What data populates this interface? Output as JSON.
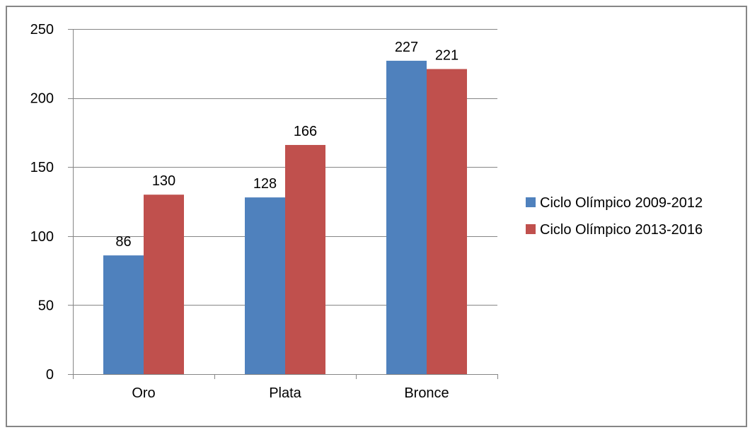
{
  "chart_data": {
    "type": "bar",
    "title": "",
    "xlabel": "",
    "ylabel": "",
    "categories": [
      "Oro",
      "Plata",
      "Bronce"
    ],
    "series": [
      {
        "name": "Ciclo Olímpico 2009-2012",
        "values": [
          86,
          128,
          227
        ],
        "color": "#4F81BD"
      },
      {
        "name": "Ciclo Olímpico 2013-2016",
        "values": [
          130,
          166,
          221
        ],
        "color": "#C0504D"
      }
    ],
    "ylim": [
      0,
      250
    ],
    "yticks": [
      0,
      50,
      100,
      150,
      200,
      250
    ],
    "grid": true,
    "legend": "right",
    "data_labels": true
  }
}
